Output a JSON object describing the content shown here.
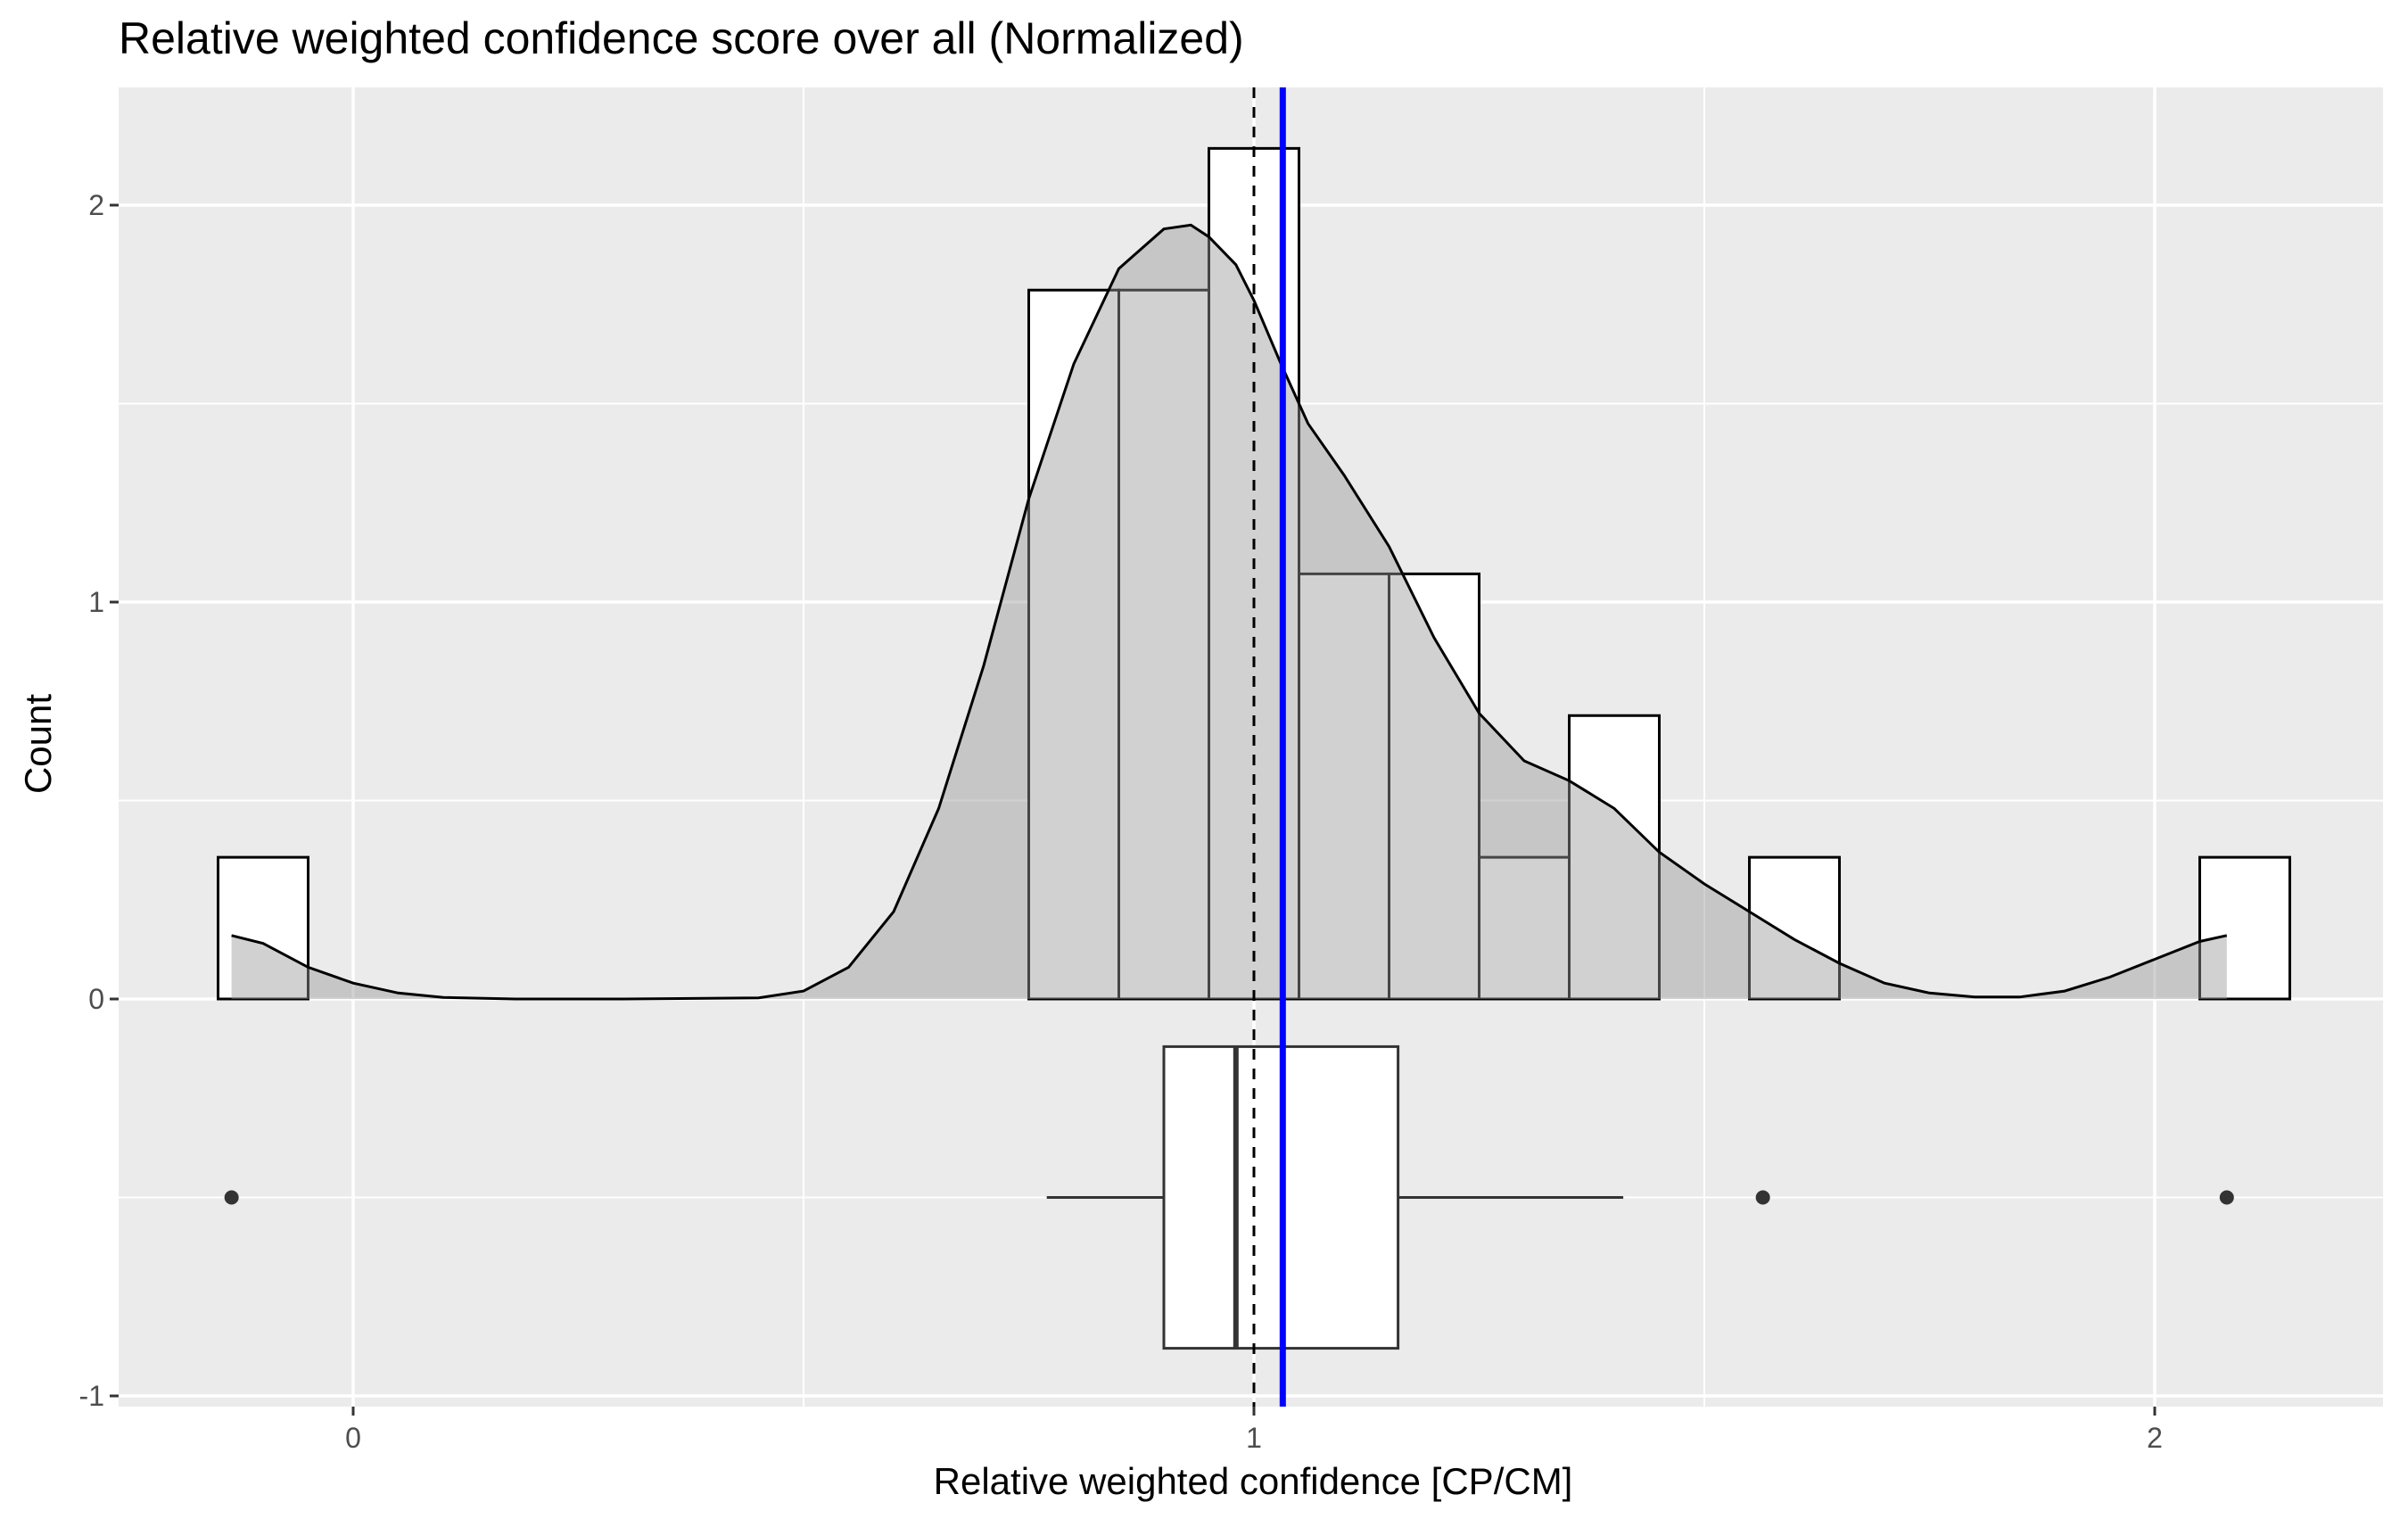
{
  "chart_data": {
    "type": "histogram",
    "title": "Relative weighted confidence score over all (Normalized)",
    "xlabel": "Relative weighted confidence [CP/CM]",
    "ylabel": "Count",
    "xlim": [
      -0.2,
      2.25
    ],
    "ylim": [
      -1.0,
      2.3
    ],
    "x_ticks": [
      0,
      1,
      2
    ],
    "x_tick_labels": [
      "0",
      "1",
      "2"
    ],
    "y_ticks": [
      -1,
      0,
      1,
      2
    ],
    "y_tick_labels": [
      "-1",
      "0",
      "1",
      "2"
    ],
    "grid": true,
    "histogram": {
      "bin_width": 0.1,
      "bins": [
        {
          "x0": -0.15,
          "x1": -0.05,
          "count": 0.357
        },
        {
          "x0": 0.75,
          "x1": 0.85,
          "count": 1.786
        },
        {
          "x0": 0.85,
          "x1": 0.95,
          "count": 1.786
        },
        {
          "x0": 0.95,
          "x1": 1.05,
          "count": 2.143
        },
        {
          "x0": 1.05,
          "x1": 1.15,
          "count": 1.071
        },
        {
          "x0": 1.15,
          "x1": 1.25,
          "count": 1.071
        },
        {
          "x0": 1.25,
          "x1": 1.35,
          "count": 0.357
        },
        {
          "x0": 1.35,
          "x1": 1.45,
          "count": 0.714
        },
        {
          "x0": 1.45,
          "x1": 1.55,
          "count": 0
        },
        {
          "x0": 1.55,
          "x1": 1.65,
          "count": 0.357
        },
        {
          "x0": 2.05,
          "x1": 2.15,
          "count": 0.357
        }
      ]
    },
    "density": {
      "x": [
        -0.135,
        -0.1,
        -0.05,
        0.0,
        0.05,
        0.1,
        0.18,
        0.3,
        0.45,
        0.5,
        0.55,
        0.6,
        0.65,
        0.7,
        0.75,
        0.8,
        0.85,
        0.9,
        0.93,
        0.95,
        0.98,
        1.0,
        1.03,
        1.06,
        1.1,
        1.15,
        1.2,
        1.25,
        1.3,
        1.35,
        1.4,
        1.45,
        1.5,
        1.55,
        1.6,
        1.65,
        1.7,
        1.75,
        1.8,
        1.85,
        1.9,
        1.95,
        2.0,
        2.05,
        2.08
      ],
      "y": [
        0.16,
        0.14,
        0.08,
        0.04,
        0.015,
        0.004,
        0.0,
        0.0,
        0.003,
        0.02,
        0.08,
        0.22,
        0.48,
        0.84,
        1.26,
        1.6,
        1.84,
        1.94,
        1.95,
        1.92,
        1.85,
        1.76,
        1.6,
        1.45,
        1.32,
        1.14,
        0.91,
        0.72,
        0.6,
        0.55,
        0.48,
        0.37,
        0.29,
        0.22,
        0.15,
        0.09,
        0.04,
        0.015,
        0.005,
        0.005,
        0.02,
        0.055,
        0.1,
        0.145,
        0.16
      ]
    },
    "boxplot": {
      "y_center": -0.5,
      "half_height": 0.38,
      "q1": 0.9,
      "median": 0.98,
      "q3": 1.16,
      "whisker_low": 0.77,
      "whisker_high": 1.41,
      "outliers": [
        -0.135,
        1.565,
        2.08
      ]
    },
    "reference_lines": [
      {
        "x": 1.0,
        "style": "dashed",
        "color": "#000000"
      },
      {
        "x": 1.032,
        "style": "solid",
        "color": "#0000ff"
      }
    ],
    "colors": {
      "panel_bg": "#ebebeb",
      "grid": "#ffffff",
      "bar_fill": "#ffffff",
      "bar_stroke": "#000000",
      "density_fill": "#999999",
      "density_opacity": 0.45,
      "mean_line": "#0000ff",
      "outlier": "#333333",
      "tick_text": "#4d4d4d"
    }
  }
}
